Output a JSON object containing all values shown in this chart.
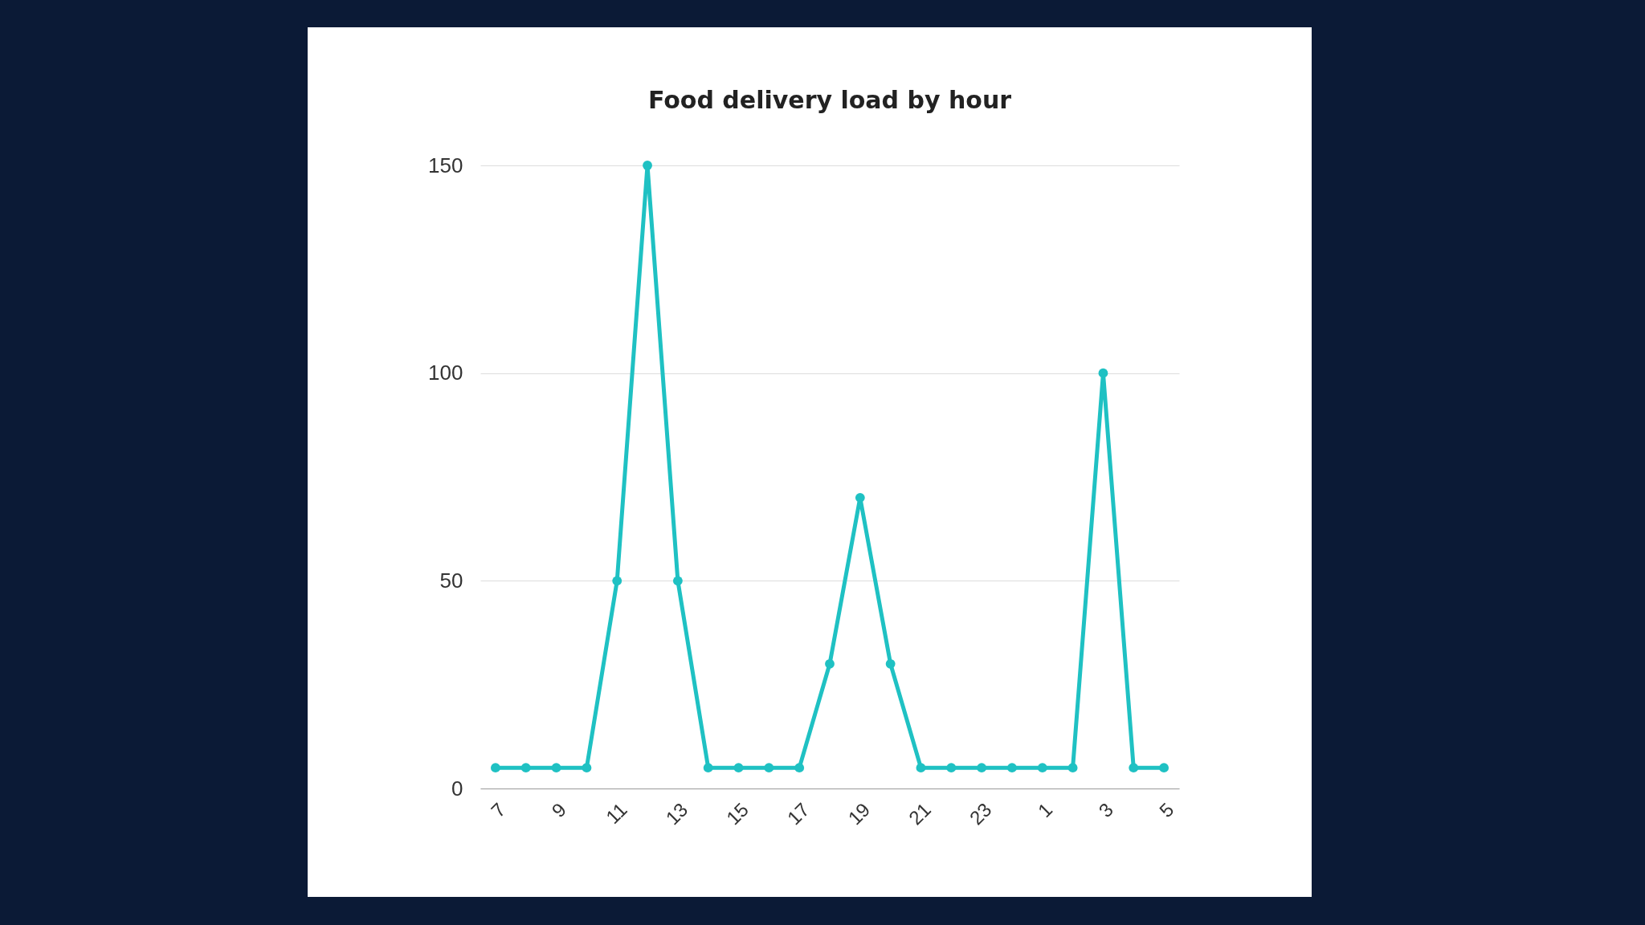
{
  "chart_data": {
    "type": "line",
    "title": "Food delivery load by hour",
    "categories": [
      "7",
      null,
      "9",
      null,
      "11",
      null,
      "13",
      null,
      "15",
      null,
      "17",
      null,
      "19",
      null,
      "21",
      null,
      "23",
      null,
      "1",
      null,
      "3",
      null,
      "5"
    ],
    "series": [
      {
        "color": "#1fc1c3",
        "values": [
          5,
          5,
          5,
          5,
          50,
          150,
          50,
          5,
          5,
          5,
          5,
          30,
          70,
          30,
          5,
          5,
          5,
          5,
          5,
          5,
          100,
          5,
          5
        ]
      }
    ],
    "ylim": [
      0,
      150
    ],
    "yticks": [
      0,
      50,
      100,
      150
    ],
    "grid": "y",
    "legend": false,
    "marker": "circle",
    "line_style": "solid"
  }
}
